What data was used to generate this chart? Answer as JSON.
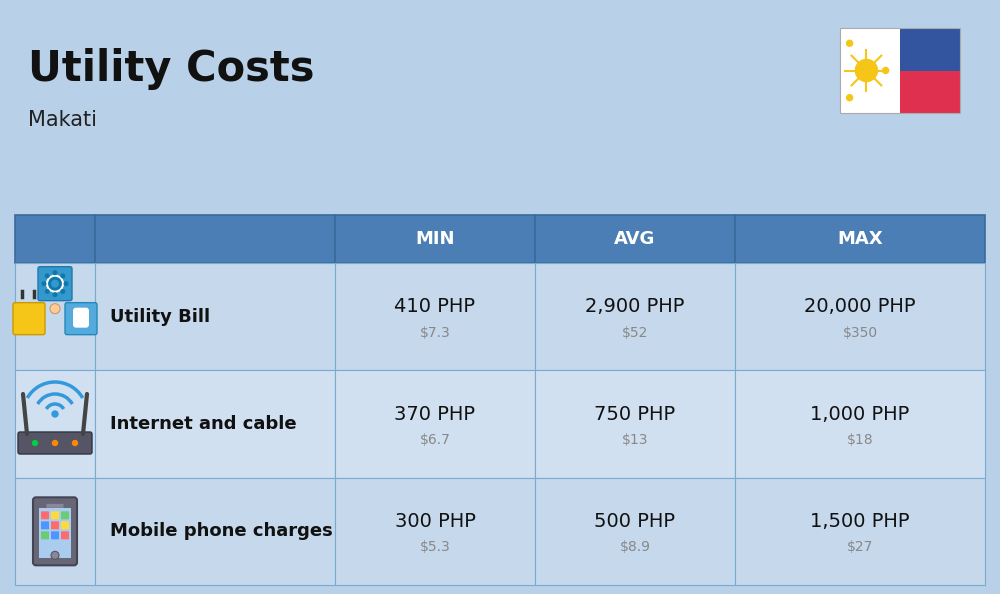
{
  "title": "Utility Costs",
  "subtitle": "Makati",
  "background_color": "#b8d0e8",
  "header_bg_color": "#4a7eb5",
  "header_text_color": "#ffffff",
  "row_bg_color_1": "#c5d8ec",
  "row_bg_color_2": "#d0e0f0",
  "columns": [
    "MIN",
    "AVG",
    "MAX"
  ],
  "rows": [
    {
      "label": "Utility Bill",
      "min_php": "410 PHP",
      "min_usd": "$7.3",
      "avg_php": "2,900 PHP",
      "avg_usd": "$52",
      "max_php": "20,000 PHP",
      "max_usd": "$350",
      "icon": "utility"
    },
    {
      "label": "Internet and cable",
      "min_php": "370 PHP",
      "min_usd": "$6.7",
      "avg_php": "750 PHP",
      "avg_usd": "$13",
      "max_php": "1,000 PHP",
      "max_usd": "$18",
      "icon": "internet"
    },
    {
      "label": "Mobile phone charges",
      "min_php": "300 PHP",
      "min_usd": "$5.3",
      "avg_php": "500 PHP",
      "avg_usd": "$8.9",
      "max_php": "1,500 PHP",
      "max_usd": "$27",
      "icon": "mobile"
    }
  ],
  "title_fontsize": 30,
  "subtitle_fontsize": 15,
  "header_fontsize": 13,
  "label_fontsize": 13,
  "value_php_fontsize": 14,
  "value_usd_fontsize": 10,
  "flag_blue": "#3355a0",
  "flag_red": "#e03050",
  "flag_sun": "#f5c518",
  "flag_star": "#f5c518"
}
